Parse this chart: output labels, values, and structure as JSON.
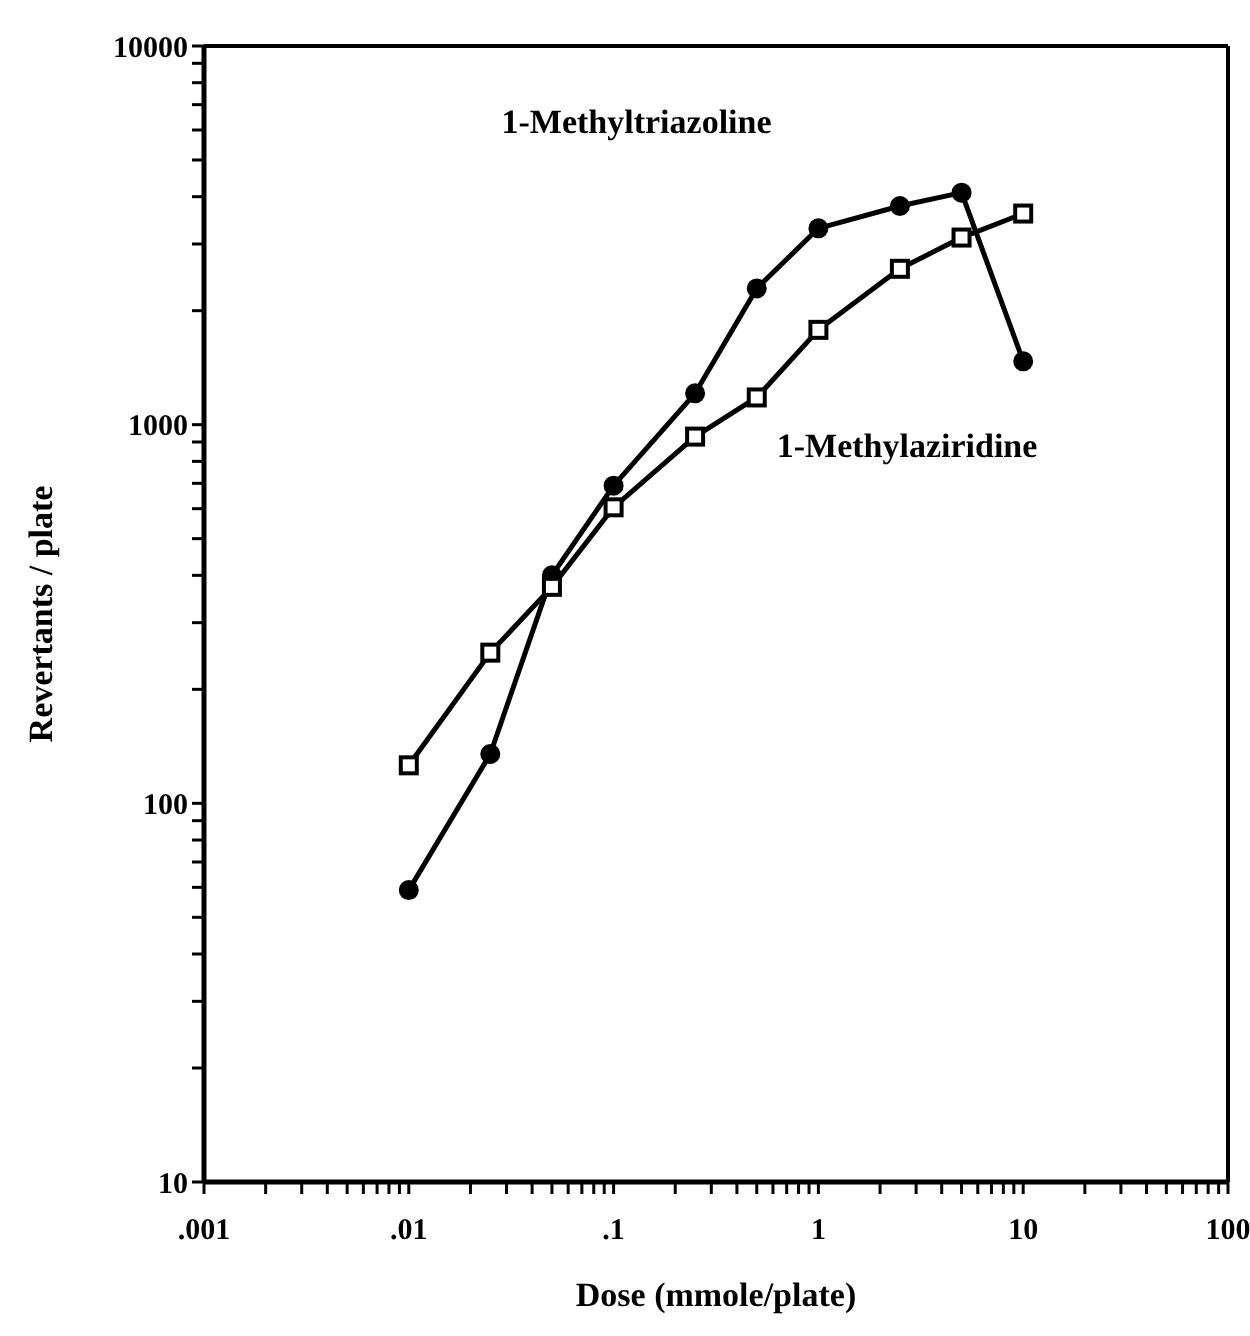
{
  "chart_data": {
    "type": "line",
    "xlabel": "Dose (mmole/plate)",
    "ylabel": "Revertants / plate",
    "log": "xy",
    "line_style": "solid",
    "xlim": [
      0.001,
      100
    ],
    "ylim": [
      10,
      10000
    ],
    "xticks": [
      {
        "value": 0.001,
        "label": ".001"
      },
      {
        "value": 0.002,
        "label": null
      },
      {
        "value": 0.003,
        "label": null
      },
      {
        "value": 0.004,
        "label": null
      },
      {
        "value": 0.005,
        "label": null
      },
      {
        "value": 0.006,
        "label": null
      },
      {
        "value": 0.007,
        "label": null
      },
      {
        "value": 0.008,
        "label": null
      },
      {
        "value": 0.009,
        "label": null
      },
      {
        "value": 0.01,
        "label": ".01"
      },
      {
        "value": 0.02,
        "label": null
      },
      {
        "value": 0.03,
        "label": null
      },
      {
        "value": 0.04,
        "label": null
      },
      {
        "value": 0.05,
        "label": null
      },
      {
        "value": 0.06,
        "label": null
      },
      {
        "value": 0.07,
        "label": null
      },
      {
        "value": 0.08,
        "label": null
      },
      {
        "value": 0.09,
        "label": null
      },
      {
        "value": 0.1,
        "label": ".1"
      },
      {
        "value": 0.2,
        "label": null
      },
      {
        "value": 0.3,
        "label": null
      },
      {
        "value": 0.4,
        "label": null
      },
      {
        "value": 0.5,
        "label": null
      },
      {
        "value": 0.6,
        "label": null
      },
      {
        "value": 0.7,
        "label": null
      },
      {
        "value": 0.8,
        "label": null
      },
      {
        "value": 0.9,
        "label": null
      },
      1,
      {
        "value": 2,
        "label": null
      },
      {
        "value": 3,
        "label": null
      },
      {
        "value": 4,
        "label": null
      },
      {
        "value": 5,
        "label": null
      },
      {
        "value": 6,
        "label": null
      },
      {
        "value": 7,
        "label": null
      },
      {
        "value": 8,
        "label": null
      },
      {
        "value": 9,
        "label": null
      },
      10,
      {
        "value": 20,
        "label": null
      },
      {
        "value": 30,
        "label": null
      },
      {
        "value": 40,
        "label": null
      },
      {
        "value": 50,
        "label": null
      },
      {
        "value": 60,
        "label": null
      },
      {
        "value": 70,
        "label": null
      },
      {
        "value": 80,
        "label": null
      },
      {
        "value": 90,
        "label": null
      },
      100
    ],
    "yticks": [
      10,
      {
        "value": 20,
        "label": null
      },
      {
        "value": 30,
        "label": null
      },
      {
        "value": 40,
        "label": null
      },
      {
        "value": 50,
        "label": null
      },
      {
        "value": 60,
        "label": null
      },
      {
        "value": 70,
        "label": null
      },
      {
        "value": 80,
        "label": null
      },
      {
        "value": 90,
        "label": null
      },
      100,
      {
        "value": 200,
        "label": null
      },
      {
        "value": 300,
        "label": null
      },
      {
        "value": 400,
        "label": null
      },
      {
        "value": 500,
        "label": null
      },
      {
        "value": 600,
        "label": null
      },
      {
        "value": 700,
        "label": null
      },
      {
        "value": 800,
        "label": null
      },
      {
        "value": 900,
        "label": null
      },
      1000,
      {
        "value": 2000,
        "label": null
      },
      {
        "value": 3000,
        "label": null
      },
      {
        "value": 4000,
        "label": null
      },
      {
        "value": 5000,
        "label": null
      },
      {
        "value": 6000,
        "label": null
      },
      {
        "value": 7000,
        "label": null
      },
      {
        "value": 8000,
        "label": null
      },
      {
        "value": 9000,
        "label": null
      },
      10000
    ],
    "x": [
      0.01,
      0.025,
      0.05,
      0.1,
      0.25,
      0.5,
      1,
      2.5,
      5,
      10
    ],
    "series": [
      {
        "name": "1-Methyltriazoline",
        "color": "#000000",
        "marker": "circle",
        "values": [
          59,
          135,
          400,
          690,
          1210,
          2290,
          3300,
          3780,
          4100,
          1470
        ]
      },
      {
        "name": "1-Methylaziridine",
        "color": "#000000",
        "marker": "square",
        "values": [
          126,
          250,
          373,
          605,
          930,
          1180,
          1780,
          2580,
          3120,
          3610
        ]
      }
    ]
  }
}
